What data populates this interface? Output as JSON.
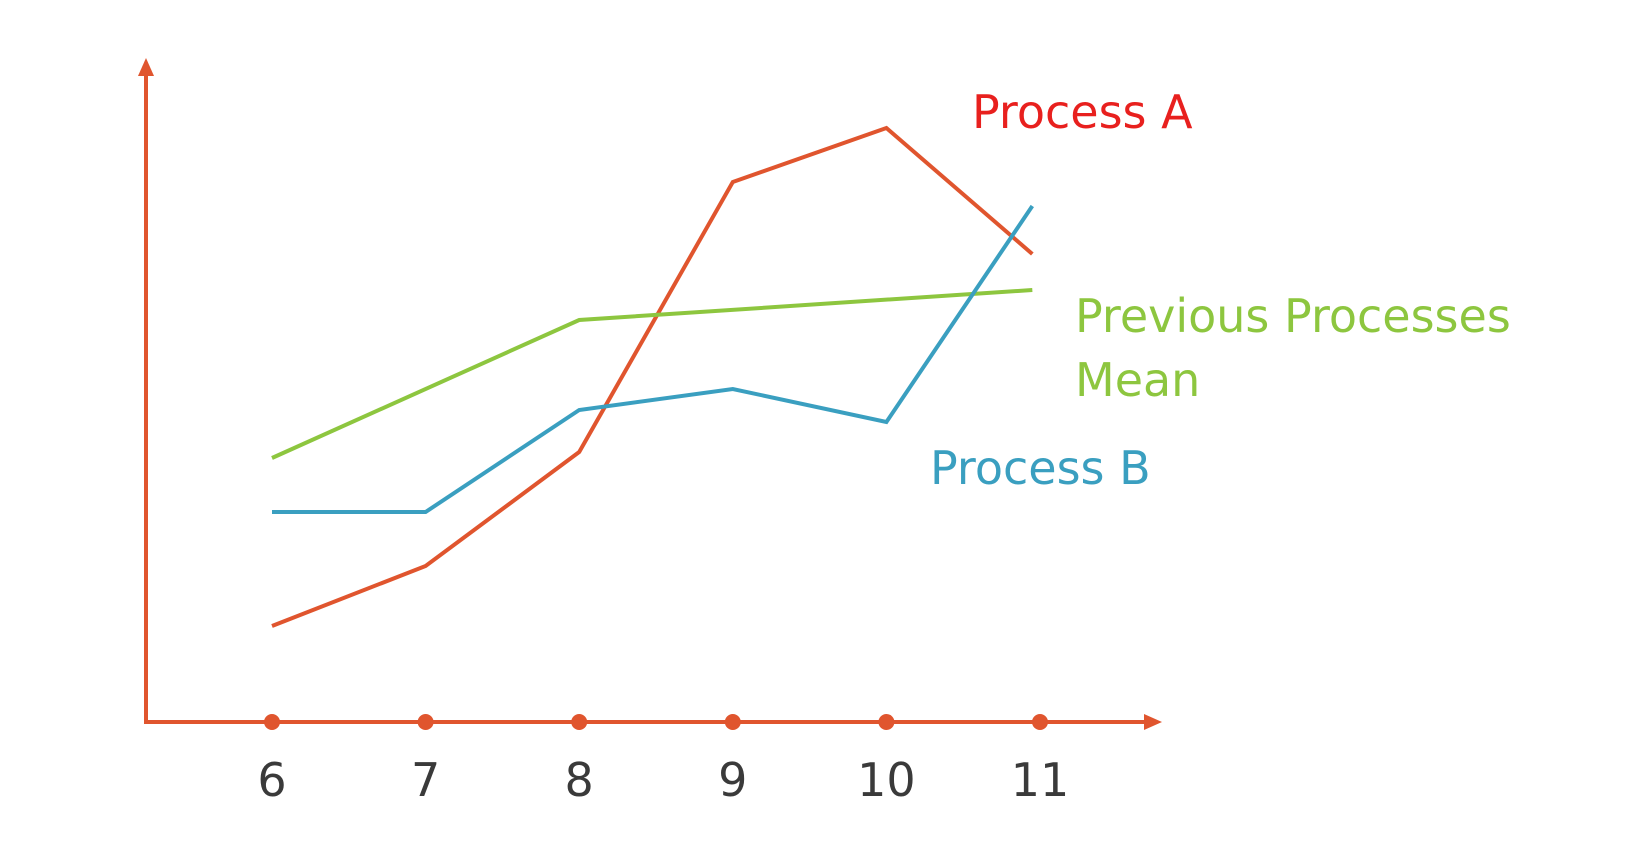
{
  "chart_data": {
    "type": "line",
    "x": [
      6,
      7,
      8,
      9,
      10,
      11
    ],
    "x_tick_labels": [
      "6",
      "7",
      "8",
      "9",
      "10",
      "11"
    ],
    "ylim": [
      0,
      100
    ],
    "grid": false,
    "axis_color": "#e0552e",
    "series": [
      {
        "key": "process_a",
        "name": "Process A",
        "color": "#e0552e",
        "label_color": "#e8201e",
        "x": [
          6,
          7,
          8,
          9,
          10,
          10.95
        ],
        "values": [
          16,
          26,
          45,
          90,
          99,
          78
        ]
      },
      {
        "key": "previous_mean",
        "name_lines": [
          "Previous Processes",
          "Mean"
        ],
        "color": "#8dc63f",
        "label_color": "#8dc63f",
        "x": [
          6,
          8,
          10.95
        ],
        "values": [
          44,
          67,
          72
        ]
      },
      {
        "key": "process_b",
        "name": "Process B",
        "color": "#3a9fc0",
        "label_color": "#3a9fc0",
        "x": [
          6,
          7,
          8,
          9,
          10,
          10.95
        ],
        "values": [
          35,
          35,
          52,
          55.5,
          50,
          86
        ]
      }
    ]
  }
}
